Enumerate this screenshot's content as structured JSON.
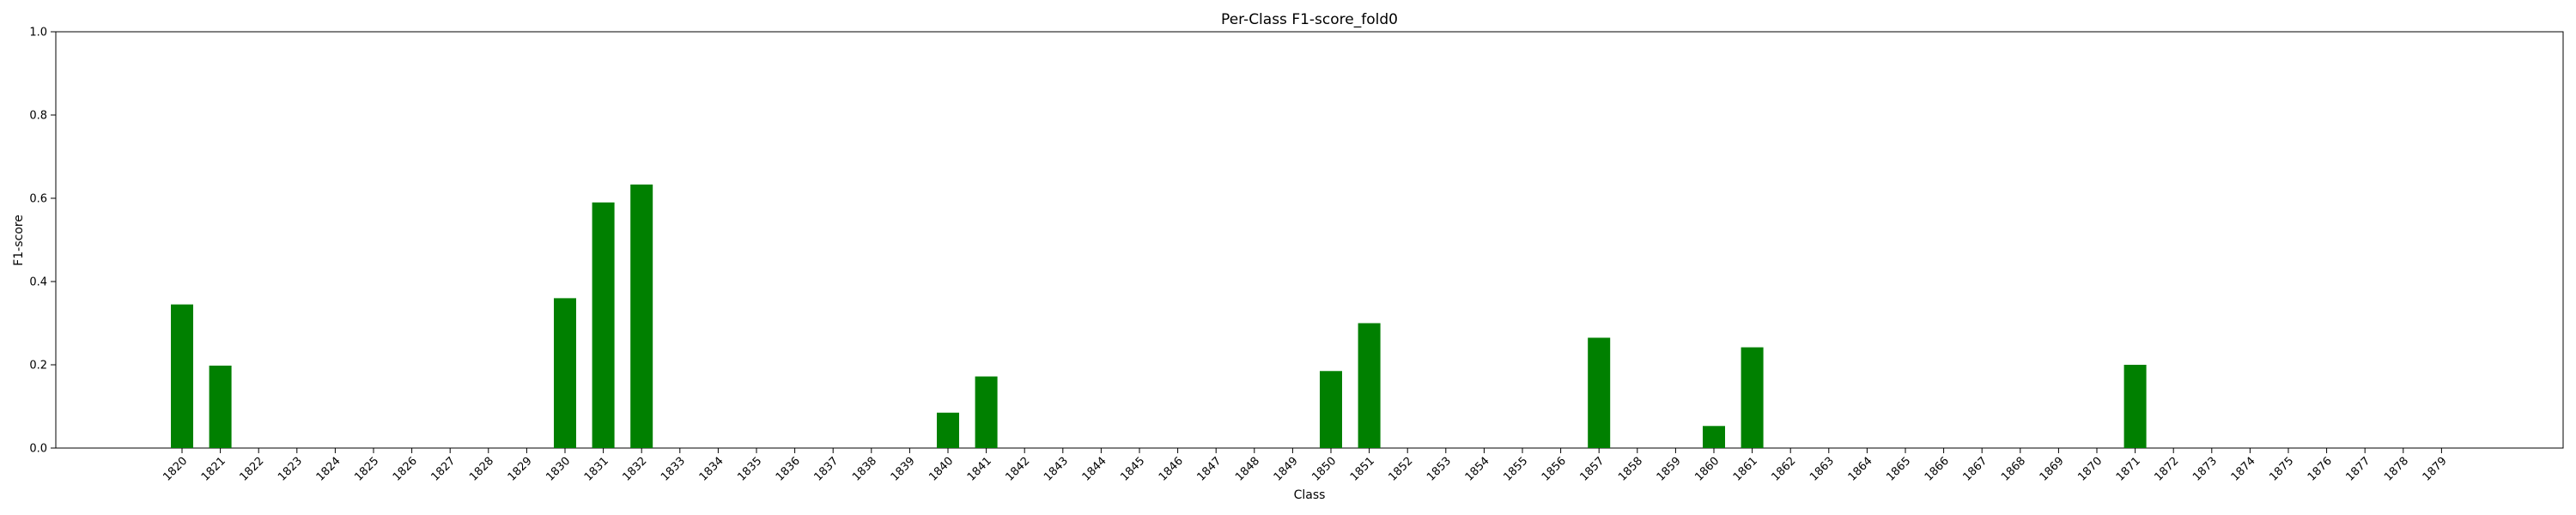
{
  "chart_data": {
    "type": "bar",
    "title": "Per-Class F1-score_fold0",
    "xlabel": "Class",
    "ylabel": "F1-score",
    "ylim": [
      0,
      1
    ],
    "yticks": [
      "0.0",
      "0.2",
      "0.4",
      "0.6",
      "0.8",
      "1.0"
    ],
    "bar_color": "#008000",
    "grid": false,
    "categories": [
      "1820",
      "1821",
      "1822",
      "1823",
      "1824",
      "1825",
      "1826",
      "1827",
      "1828",
      "1829",
      "1830",
      "1831",
      "1832",
      "1833",
      "1834",
      "1835",
      "1836",
      "1837",
      "1838",
      "1839",
      "1840",
      "1841",
      "1842",
      "1843",
      "1844",
      "1845",
      "1846",
      "1847",
      "1848",
      "1849",
      "1850",
      "1851",
      "1852",
      "1853",
      "1854",
      "1855",
      "1856",
      "1857",
      "1858",
      "1859",
      "1860",
      "1861",
      "1862",
      "1863",
      "1864",
      "1865",
      "1866",
      "1867",
      "1868",
      "1869",
      "1870",
      "1871",
      "1872",
      "1873",
      "1874",
      "1875",
      "1876",
      "1877",
      "1878",
      "1879"
    ],
    "values": [
      0.345,
      0.198,
      0,
      0,
      0,
      0,
      0,
      0,
      0,
      0,
      0.36,
      0.59,
      0.633,
      0,
      0,
      0,
      0,
      0,
      0,
      0,
      0.085,
      0.172,
      0,
      0,
      0,
      0,
      0,
      0,
      0,
      0,
      0.185,
      0.3,
      0,
      0,
      0,
      0,
      0,
      0.265,
      0,
      0,
      0.053,
      0.242,
      0,
      0,
      0,
      0,
      0,
      0,
      0,
      0,
      0,
      0.2,
      0,
      0,
      0,
      0,
      0,
      0,
      0,
      0
    ]
  }
}
